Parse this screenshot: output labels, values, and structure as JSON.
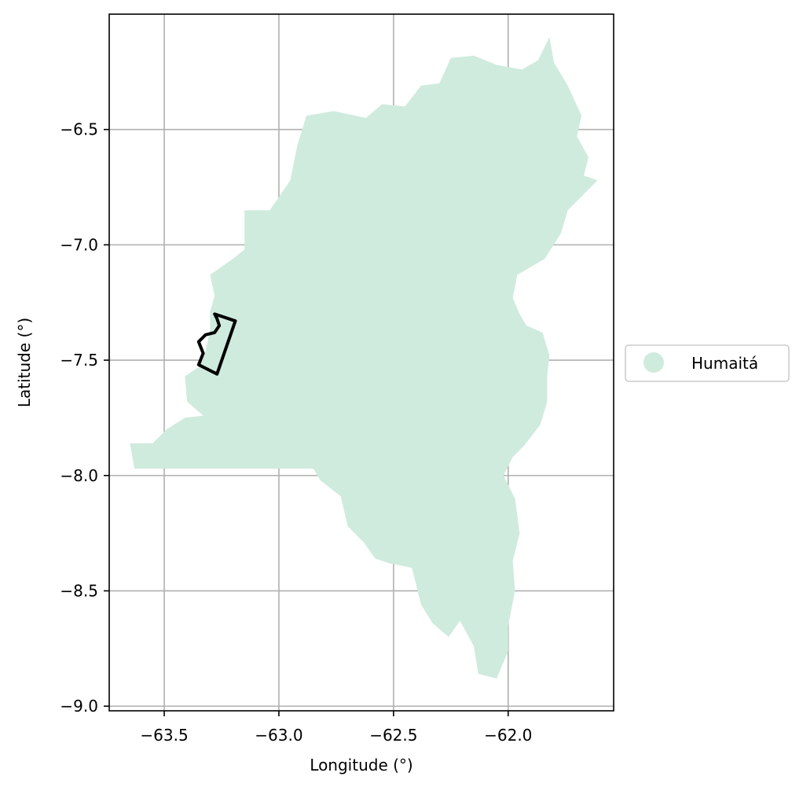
{
  "chart_data": {
    "type": "map",
    "xlabel": "Longitude (°)",
    "ylabel": "Latitude (°)",
    "xlim": [
      -63.74,
      -61.54
    ],
    "ylim": [
      -9.02,
      -6.0
    ],
    "xticks": [
      -63.5,
      -63.0,
      -62.5,
      -62.0
    ],
    "xtick_labels": [
      "−63.5",
      "−63.0",
      "−62.5",
      "−62.0"
    ],
    "yticks": [
      -6.5,
      -7.0,
      -7.5,
      -8.0,
      -8.5,
      -9.0
    ],
    "ytick_labels": [
      "−6.5",
      "−7.0",
      "−7.5",
      "−8.0",
      "−8.5",
      "−9.0"
    ],
    "grid": true,
    "legend_placement": "right",
    "legend": [
      {
        "label": "Humaitá",
        "color": "#cfebdd"
      }
    ],
    "region": {
      "name": "Humaitá",
      "fill": "#cfebdd",
      "boundary_lonlat": [
        [
          -63.65,
          -7.86
        ],
        [
          -63.55,
          -7.86
        ],
        [
          -63.49,
          -7.8
        ],
        [
          -63.41,
          -7.75
        ],
        [
          -63.33,
          -7.74
        ],
        [
          -63.4,
          -7.68
        ],
        [
          -63.41,
          -7.57
        ],
        [
          -63.35,
          -7.53
        ],
        [
          -63.32,
          -7.46
        ],
        [
          -63.3,
          -7.37
        ],
        [
          -63.3,
          -7.29
        ],
        [
          -63.28,
          -7.22
        ],
        [
          -63.3,
          -7.13
        ],
        [
          -63.2,
          -7.06
        ],
        [
          -63.15,
          -7.02
        ],
        [
          -63.15,
          -6.94
        ],
        [
          -63.15,
          -6.85
        ],
        [
          -63.04,
          -6.85
        ],
        [
          -62.95,
          -6.72
        ],
        [
          -62.92,
          -6.57
        ],
        [
          -62.88,
          -6.44
        ],
        [
          -62.76,
          -6.42
        ],
        [
          -62.62,
          -6.45
        ],
        [
          -62.55,
          -6.39
        ],
        [
          -62.45,
          -6.4
        ],
        [
          -62.38,
          -6.31
        ],
        [
          -62.3,
          -6.3
        ],
        [
          -62.25,
          -6.19
        ],
        [
          -62.15,
          -6.18
        ],
        [
          -62.05,
          -6.22
        ],
        [
          -61.94,
          -6.24
        ],
        [
          -61.87,
          -6.2
        ],
        [
          -61.82,
          -6.1
        ],
        [
          -61.8,
          -6.21
        ],
        [
          -61.74,
          -6.31
        ],
        [
          -61.68,
          -6.44
        ],
        [
          -61.7,
          -6.53
        ],
        [
          -61.65,
          -6.62
        ],
        [
          -61.67,
          -6.7
        ],
        [
          -61.61,
          -6.72
        ],
        [
          -61.74,
          -6.85
        ],
        [
          -61.77,
          -6.95
        ],
        [
          -61.84,
          -7.06
        ],
        [
          -61.96,
          -7.13
        ],
        [
          -61.98,
          -7.23
        ],
        [
          -61.95,
          -7.3
        ],
        [
          -61.92,
          -7.35
        ],
        [
          -61.85,
          -7.38
        ],
        [
          -61.82,
          -7.48
        ],
        [
          -61.83,
          -7.57
        ],
        [
          -61.83,
          -7.68
        ],
        [
          -61.86,
          -7.78
        ],
        [
          -61.93,
          -7.87
        ],
        [
          -61.98,
          -7.92
        ],
        [
          -62.02,
          -8.0
        ],
        [
          -61.97,
          -8.1
        ],
        [
          -61.95,
          -8.25
        ],
        [
          -61.98,
          -8.37
        ],
        [
          -61.97,
          -8.5
        ],
        [
          -62.0,
          -8.65
        ],
        [
          -62.0,
          -8.76
        ],
        [
          -62.05,
          -8.88
        ],
        [
          -62.13,
          -8.86
        ],
        [
          -62.15,
          -8.74
        ],
        [
          -62.21,
          -8.63
        ],
        [
          -62.26,
          -8.7
        ],
        [
          -62.33,
          -8.64
        ],
        [
          -62.38,
          -8.56
        ],
        [
          -62.42,
          -8.4
        ],
        [
          -62.52,
          -8.38
        ],
        [
          -62.58,
          -8.36
        ],
        [
          -62.63,
          -8.29
        ],
        [
          -62.7,
          -8.22
        ],
        [
          -62.73,
          -8.09
        ],
        [
          -62.82,
          -8.02
        ],
        [
          -62.85,
          -7.97
        ],
        [
          -63.1,
          -7.97
        ],
        [
          -63.63,
          -7.97
        ]
      ]
    },
    "outline_polygon": {
      "stroke": "#000000",
      "boundary_lonlat": [
        [
          -63.28,
          -7.3
        ],
        [
          -63.19,
          -7.33
        ],
        [
          -63.27,
          -7.56
        ],
        [
          -63.35,
          -7.52
        ],
        [
          -63.33,
          -7.47
        ],
        [
          -63.35,
          -7.42
        ],
        [
          -63.32,
          -7.39
        ],
        [
          -63.28,
          -7.38
        ],
        [
          -63.26,
          -7.35
        ],
        [
          -63.27,
          -7.32
        ]
      ]
    }
  }
}
